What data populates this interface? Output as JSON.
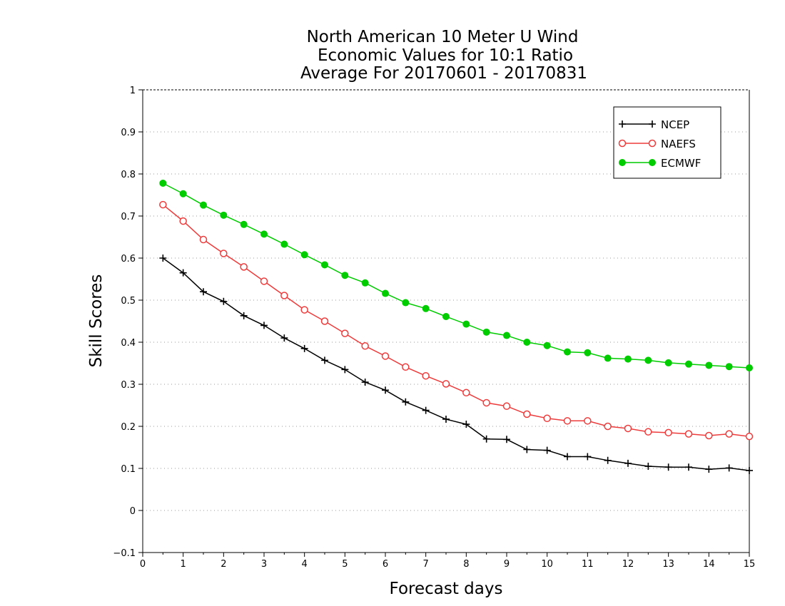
{
  "chart_data": {
    "type": "line",
    "title": [
      "North American 10 Meter U Wind",
      "Economic Values for 10:1 Ratio",
      "Average For 20170601 - 20170831"
    ],
    "xlabel": "Forecast days",
    "ylabel": "Skill Scores",
    "xlim": [
      0,
      15
    ],
    "ylim": [
      -0.1,
      1
    ],
    "xticks": [
      0,
      1,
      2,
      3,
      4,
      5,
      6,
      7,
      8,
      9,
      10,
      11,
      12,
      13,
      14,
      15
    ],
    "yticks": [
      -0.1,
      0,
      0.1,
      0.2,
      0.3,
      0.4,
      0.5,
      0.6,
      0.7,
      0.8,
      0.9,
      1
    ],
    "ytick_labels": [
      "−0.1",
      "0",
      "0.1",
      "0.2",
      "0.3",
      "0.4",
      "0.5",
      "0.6",
      "0.7",
      "0.8",
      "0.9",
      "1"
    ],
    "grid": "horizontal dotted",
    "legend_position": "top-right",
    "x": [
      0.5,
      1,
      1.5,
      2,
      2.5,
      3,
      3.5,
      4,
      4.5,
      5,
      5.5,
      6,
      6.5,
      7,
      7.5,
      8,
      8.5,
      9,
      9.5,
      10,
      10.5,
      11,
      11.5,
      12,
      12.5,
      13,
      13.5,
      14,
      14.5,
      15
    ],
    "series": [
      {
        "name": "NCEP",
        "color": "#000000",
        "marker": "plus",
        "values": [
          0.6,
          0.565,
          0.52,
          0.497,
          0.463,
          0.44,
          0.41,
          0.385,
          0.357,
          0.335,
          0.305,
          0.286,
          0.258,
          0.238,
          0.217,
          0.205,
          0.17,
          0.169,
          0.145,
          0.143,
          0.128,
          0.128,
          0.119,
          0.112,
          0.105,
          0.103,
          0.103,
          0.098,
          0.101,
          0.095
        ]
      },
      {
        "name": "NAEFS",
        "color": "#ee3b3b",
        "marker": "open-circle",
        "values": [
          0.727,
          0.688,
          0.644,
          0.611,
          0.579,
          0.545,
          0.511,
          0.477,
          0.45,
          0.421,
          0.391,
          0.367,
          0.341,
          0.32,
          0.301,
          0.28,
          0.256,
          0.248,
          0.229,
          0.219,
          0.213,
          0.213,
          0.2,
          0.195,
          0.187,
          0.185,
          0.182,
          0.178,
          0.182,
          0.176
        ]
      },
      {
        "name": "ECMWF",
        "color": "#00cc00",
        "marker": "filled-circle",
        "values": [
          0.778,
          0.753,
          0.726,
          0.702,
          0.68,
          0.657,
          0.633,
          0.608,
          0.584,
          0.559,
          0.541,
          0.516,
          0.494,
          0.48,
          0.461,
          0.443,
          0.424,
          0.416,
          0.4,
          0.392,
          0.377,
          0.375,
          0.362,
          0.36,
          0.357,
          0.351,
          0.348,
          0.345,
          0.342,
          0.339
        ]
      }
    ]
  }
}
